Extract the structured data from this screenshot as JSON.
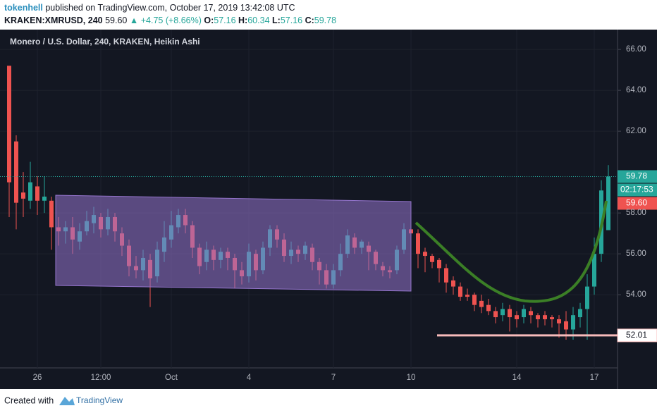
{
  "header": {
    "author": "tokenhell",
    "published": "published on TradingView.com, October 17, 2019 13:42:08 UTC"
  },
  "quote": {
    "symbol": "KRAKEN:XMRUSD, 240",
    "last": "59.60",
    "arrow": "▲",
    "change": "+4.75 (+8.66%)",
    "o_label": "O:",
    "o": "57.16",
    "h_label": "H:",
    "h": "60.34",
    "l_label": "L:",
    "l": "57.16",
    "c_label": "C:",
    "c": "59.78"
  },
  "footer": {
    "created": "Created with",
    "brand": "TradingView"
  },
  "chart_data": {
    "type": "candlestick",
    "title": "Monero / U.S. Dollar, 240, KRAKEN, Heikin Ashi",
    "categories": [
      null,
      null,
      null,
      null,
      "26",
      null,
      null,
      null,
      null,
      null,
      null,
      null,
      null,
      "12:00",
      null,
      null,
      null,
      null,
      null,
      null,
      null,
      null,
      null,
      "Oct",
      null,
      null,
      null,
      null,
      null,
      null,
      null,
      null,
      null,
      null,
      "4",
      null,
      null,
      null,
      null,
      null,
      null,
      null,
      null,
      null,
      null,
      null,
      "7",
      null,
      null,
      null,
      null,
      null,
      null,
      null,
      null,
      null,
      null,
      "10",
      null,
      null,
      null,
      null,
      null,
      null,
      null,
      null,
      null,
      null,
      null,
      null,
      null,
      null,
      "14",
      null,
      null,
      null,
      null,
      null,
      null,
      null,
      null,
      null,
      null,
      "17",
      null,
      null
    ],
    "open": [
      65.2,
      61.5,
      59,
      58.6,
      59.3,
      58.6,
      58.6,
      57.3,
      57.1,
      57.3,
      56.6,
      57.1,
      57.5,
      57.8,
      57.2,
      57.8,
      57,
      56.4,
      55.4,
      55.2,
      55.7,
      54.9,
      56.1,
      56.7,
      57.3,
      57.9,
      57.4,
      56.3,
      55.6,
      56.2,
      55.7,
      56.1,
      55.8,
      55.2,
      54.9,
      56,
      55.2,
      56.3,
      57.2,
      56.7,
      55.9,
      56.2,
      56,
      56.3,
      55.6,
      55.2,
      54.5,
      55.2,
      56,
      56.8,
      56.3,
      56.4,
      56.1,
      55.4,
      55.2,
      55.2,
      56.2,
      57.2,
      57,
      56.1,
      55.9,
      55.7,
      55.3,
      54.7,
      54.4,
      54,
      54,
      53.7,
      53.5,
      53.2,
      53,
      53.3,
      53,
      52.9,
      53.2,
      53,
      53,
      52.9,
      52.8,
      52.7,
      52.3,
      52.9,
      53.3,
      54.4,
      56,
      57.16
    ],
    "high": [
      65.2,
      61.8,
      60,
      60.5,
      59.8,
      59.8,
      58.8,
      57.8,
      57.6,
      57.8,
      57.5,
      58.1,
      58.3,
      58,
      58.2,
      58,
      57.3,
      56.7,
      55.9,
      56.2,
      56,
      56.6,
      57.6,
      58.1,
      58.2,
      58.2,
      57.6,
      56.5,
      56.6,
      56.4,
      56.3,
      56.3,
      56,
      55.6,
      56.5,
      56.2,
      56.6,
      57.4,
      57.4,
      57,
      56.6,
      56.4,
      56.6,
      56.5,
      55.8,
      55.5,
      55.5,
      56.5,
      57.2,
      57,
      56.7,
      56.6,
      56.2,
      55.6,
      55.4,
      56.4,
      57.5,
      57.4,
      57.2,
      56.3,
      56,
      55.8,
      55.5,
      54.9,
      54.6,
      54.3,
      54.1,
      54,
      53.8,
      53.4,
      53.6,
      53.5,
      53.2,
      53.5,
      53.4,
      53.1,
      53.2,
      53,
      53,
      53.2,
      53.4,
      53.6,
      55,
      56.8,
      59.6,
      60.34
    ],
    "low": [
      57.8,
      57.2,
      57.8,
      58.2,
      57.9,
      58,
      56.2,
      56.4,
      56.5,
      56,
      56.2,
      56.9,
      57,
      56.8,
      56.9,
      56.6,
      55.9,
      54.9,
      54.8,
      54.7,
      53.4,
      54.6,
      55.6,
      56.3,
      57,
      57,
      55.8,
      55,
      55.2,
      55.2,
      55.3,
      55.2,
      54.3,
      54.5,
      54.6,
      54.7,
      55,
      55.9,
      56.3,
      55.6,
      55.5,
      55.6,
      55.7,
      55.2,
      54.5,
      54.3,
      54.3,
      54.9,
      55.8,
      56,
      56,
      55.2,
      55.2,
      54.9,
      54.8,
      55,
      56,
      56.5,
      55.3,
      55.1,
      55.3,
      54.6,
      54.1,
      54,
      53.7,
      53.7,
      53.2,
      53.1,
      53,
      52.6,
      52.7,
      52.2,
      52.4,
      52.6,
      52.6,
      52.4,
      52.5,
      52.4,
      51.9,
      51.8,
      51.8,
      52.4,
      51.8,
      54,
      55.6,
      57.16
    ],
    "close": [
      59.5,
      58.5,
      58.7,
      59.5,
      58.6,
      58.8,
      57.3,
      57.1,
      57.3,
      56.7,
      57.1,
      57.6,
      57.9,
      57.2,
      57.8,
      57.1,
      56.4,
      55.4,
      55.2,
      55.8,
      54.8,
      56.2,
      56.8,
      57.4,
      57.9,
      57.4,
      56.3,
      55.4,
      56.2,
      55.7,
      56.1,
      55.8,
      55.2,
      54.9,
      56.1,
      55.2,
      56.3,
      57.2,
      56.7,
      55.9,
      56.2,
      56,
      56.4,
      55.6,
      55.2,
      54.5,
      55.2,
      56,
      56.9,
      56.3,
      56.6,
      56.1,
      55.5,
      55.2,
      55.1,
      56.2,
      57.2,
      57,
      56,
      55.9,
      55.6,
      55.3,
      54.6,
      54.4,
      53.9,
      53.9,
      53.5,
      53.4,
      53.2,
      52.9,
      53.3,
      52.9,
      52.8,
      53.3,
      53,
      52.8,
      52.8,
      52.8,
      52.6,
      52.3,
      53,
      53.3,
      54.4,
      56,
      59.1,
      59.78
    ],
    "up_color": "#26a69a",
    "down_color": "#ef5350",
    "ylim": [
      50.42,
      66.97
    ],
    "yticks": [
      {
        "value": 54,
        "label": "54.00"
      },
      {
        "value": 56,
        "label": "56.00"
      },
      {
        "value": 58,
        "label": "58.00"
      },
      {
        "value": 62,
        "label": "62.00"
      },
      {
        "value": 64,
        "label": "64.00"
      },
      {
        "value": 66,
        "label": "66.00"
      }
    ],
    "grid": true,
    "last_price": {
      "value": 59.78,
      "label": "59.78"
    },
    "countdown": "02:17:53",
    "prev_price": {
      "value": 59.6,
      "label": "59.60"
    },
    "support_line": {
      "value": 52.01,
      "label": "52.01"
    }
  }
}
